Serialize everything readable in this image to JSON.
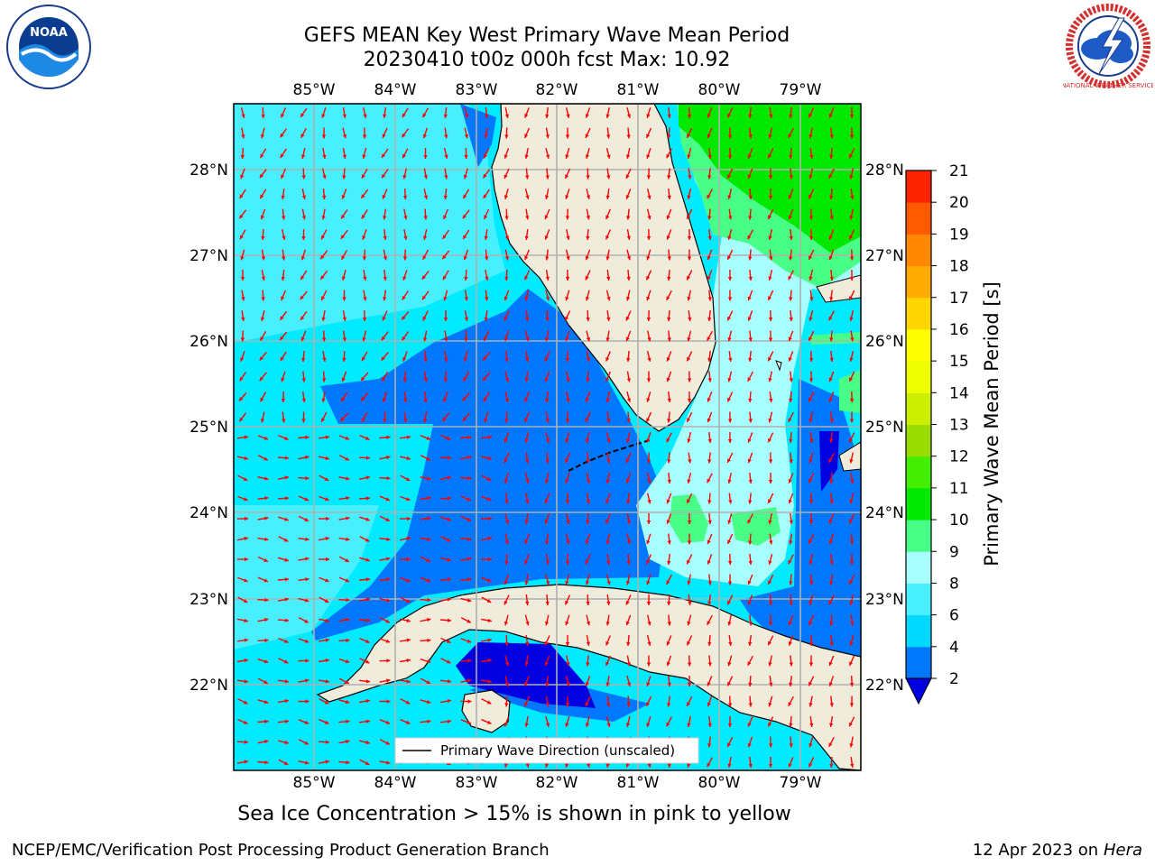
{
  "title": {
    "line1": "GEFS MEAN Key West Primary Wave Mean Period",
    "line2": "20230410 t00z 000h fcst   Max: 10.92"
  },
  "map": {
    "region": "Key West",
    "lon_labels": [
      "85°W",
      "84°W",
      "83°W",
      "82°W",
      "81°W",
      "80°W",
      "79°W"
    ],
    "lat_labels": [
      "28°N",
      "27°N",
      "26°N",
      "25°N",
      "24°N",
      "23°N",
      "22°N"
    ],
    "legend_label": "Primary Wave Direction (unscaled)",
    "arrow_color": "#ff0000",
    "land_color": "#efecdc"
  },
  "colorbar": {
    "label": "Primary Wave Mean Period [s]",
    "ticks": [
      "2",
      "4",
      "6",
      "8",
      "9",
      "10",
      "11",
      "12",
      "13",
      "14",
      "15",
      "16",
      "17",
      "18",
      "19",
      "20",
      "21"
    ],
    "colors": [
      "#0077ff",
      "#00d8ff",
      "#48f0ff",
      "#a8ffff",
      "#48ff88",
      "#00e800",
      "#44ee00",
      "#99dd00",
      "#ccee00",
      "#eeff00",
      "#ffff00",
      "#ffd700",
      "#ffaa00",
      "#ff8800",
      "#ff5a00",
      "#ff2400"
    ],
    "under_color": "#0000e0"
  },
  "note": "Sea Ice Concentration > 15% is shown in pink to yellow",
  "footer": {
    "left": "NCEP/EMC/Verification Post Processing Product Generation Branch",
    "date": "12 Apr 2023 on",
    "machine": "Hera"
  },
  "logos": {
    "noaa": "NOAA",
    "nws": "NATIONAL WEATHER SERVICE"
  }
}
